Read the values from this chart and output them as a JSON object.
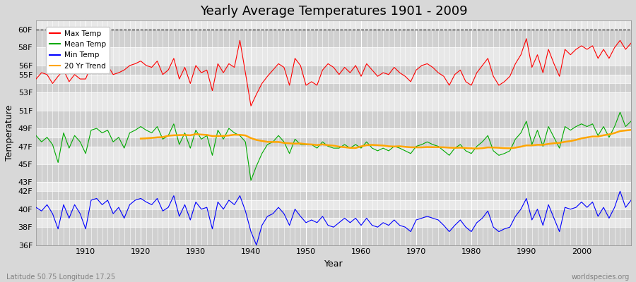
{
  "title": "Yearly Average Temperatures 1901 - 2009",
  "xlabel": "Year",
  "ylabel": "Temperature",
  "bottom_left": "Latitude 50.75 Longitude 17.25",
  "bottom_right": "worldspecies.org",
  "years": [
    1901,
    1902,
    1903,
    1904,
    1905,
    1906,
    1907,
    1908,
    1909,
    1910,
    1911,
    1912,
    1913,
    1914,
    1915,
    1916,
    1917,
    1918,
    1919,
    1920,
    1921,
    1922,
    1923,
    1924,
    1925,
    1926,
    1927,
    1928,
    1929,
    1930,
    1931,
    1932,
    1933,
    1934,
    1935,
    1936,
    1937,
    1938,
    1939,
    1940,
    1941,
    1942,
    1943,
    1944,
    1945,
    1946,
    1947,
    1948,
    1949,
    1950,
    1951,
    1952,
    1953,
    1954,
    1955,
    1956,
    1957,
    1958,
    1959,
    1960,
    1961,
    1962,
    1963,
    1964,
    1965,
    1966,
    1967,
    1968,
    1969,
    1970,
    1971,
    1972,
    1973,
    1974,
    1975,
    1976,
    1977,
    1978,
    1979,
    1980,
    1981,
    1982,
    1983,
    1984,
    1985,
    1986,
    1987,
    1988,
    1989,
    1990,
    1991,
    1992,
    1993,
    1994,
    1995,
    1996,
    1997,
    1998,
    1999,
    2000,
    2001,
    2002,
    2003,
    2004,
    2005,
    2006,
    2007,
    2008,
    2009
  ],
  "max_temp": [
    54.5,
    55.2,
    55.0,
    54.0,
    54.8,
    55.5,
    54.2,
    55.0,
    54.5,
    54.5,
    56.0,
    55.5,
    55.5,
    56.0,
    55.0,
    55.2,
    55.5,
    56.0,
    56.2,
    56.5,
    56.0,
    55.8,
    56.5,
    55.0,
    55.5,
    56.8,
    54.5,
    55.8,
    54.0,
    56.0,
    55.2,
    55.5,
    53.2,
    56.2,
    55.2,
    56.2,
    55.8,
    58.8,
    55.2,
    51.5,
    52.8,
    54.0,
    54.8,
    55.5,
    56.2,
    55.8,
    53.8,
    56.8,
    56.0,
    53.8,
    54.2,
    53.8,
    55.5,
    56.2,
    55.8,
    55.0,
    55.8,
    55.2,
    56.0,
    54.8,
    56.2,
    55.5,
    54.8,
    55.2,
    55.0,
    55.8,
    55.2,
    54.8,
    54.2,
    55.5,
    56.0,
    56.2,
    55.8,
    55.2,
    54.8,
    53.8,
    55.0,
    55.5,
    54.2,
    53.8,
    55.2,
    56.0,
    56.8,
    54.8,
    53.8,
    54.2,
    54.8,
    56.2,
    57.2,
    59.0,
    55.8,
    57.2,
    55.2,
    57.8,
    56.2,
    54.8,
    57.8,
    57.2,
    57.8,
    58.2,
    57.8,
    58.2,
    56.8,
    57.8,
    56.8,
    58.0,
    58.8,
    57.8,
    58.5
  ],
  "mean_temp": [
    48.2,
    47.5,
    48.0,
    47.2,
    45.2,
    48.5,
    46.8,
    48.2,
    47.5,
    46.2,
    48.8,
    49.0,
    48.5,
    48.8,
    47.5,
    48.0,
    46.8,
    48.5,
    48.8,
    49.2,
    48.8,
    48.5,
    49.2,
    47.8,
    48.2,
    49.5,
    47.2,
    48.5,
    46.8,
    48.8,
    47.8,
    48.2,
    46.0,
    48.8,
    47.8,
    49.0,
    48.5,
    48.2,
    47.5,
    43.2,
    44.8,
    46.2,
    47.2,
    47.5,
    48.2,
    47.5,
    46.2,
    47.8,
    47.2,
    47.2,
    47.2,
    46.8,
    47.5,
    47.0,
    46.8,
    46.8,
    47.2,
    46.8,
    47.2,
    46.8,
    47.5,
    46.8,
    46.5,
    46.8,
    46.5,
    47.0,
    46.8,
    46.5,
    46.2,
    47.0,
    47.2,
    47.5,
    47.2,
    47.0,
    46.5,
    46.0,
    46.8,
    47.2,
    46.5,
    46.2,
    47.0,
    47.5,
    48.2,
    46.5,
    46.0,
    46.2,
    46.5,
    47.8,
    48.5,
    49.8,
    47.2,
    48.8,
    47.0,
    49.2,
    48.0,
    46.8,
    49.2,
    48.8,
    49.2,
    49.5,
    49.2,
    49.5,
    48.2,
    49.2,
    48.0,
    49.2,
    50.8,
    49.2,
    49.8
  ],
  "min_temp": [
    40.2,
    39.8,
    40.5,
    39.5,
    37.8,
    40.5,
    39.0,
    40.5,
    39.5,
    37.8,
    41.0,
    41.2,
    40.5,
    41.0,
    39.5,
    40.2,
    39.0,
    40.5,
    41.0,
    41.2,
    40.8,
    40.5,
    41.2,
    39.8,
    40.2,
    41.5,
    39.2,
    40.5,
    38.8,
    40.8,
    40.0,
    40.2,
    37.8,
    40.8,
    40.0,
    41.0,
    40.5,
    41.5,
    39.8,
    37.5,
    36.0,
    38.2,
    39.2,
    39.5,
    40.2,
    39.5,
    38.2,
    40.0,
    39.2,
    38.5,
    38.8,
    38.5,
    39.2,
    38.2,
    38.0,
    38.5,
    39.0,
    38.5,
    39.0,
    38.2,
    39.0,
    38.2,
    38.0,
    38.5,
    38.2,
    38.8,
    38.2,
    38.0,
    37.5,
    38.8,
    39.0,
    39.2,
    39.0,
    38.8,
    38.2,
    37.5,
    38.2,
    38.8,
    38.0,
    37.5,
    38.5,
    39.0,
    39.8,
    38.0,
    37.5,
    37.8,
    38.0,
    39.2,
    40.0,
    41.2,
    38.8,
    40.0,
    38.2,
    40.5,
    39.0,
    37.5,
    40.2,
    40.0,
    40.2,
    40.8,
    40.2,
    40.8,
    39.2,
    40.2,
    39.0,
    40.2,
    42.0,
    40.2,
    41.0
  ],
  "bg_color": "#d8d8d8",
  "plot_bg_color": "#e0e0e0",
  "stripe_color1": "#d0d0d0",
  "stripe_color2": "#e8e8e8",
  "grid_color": "#ffffff",
  "max_color": "#ff0000",
  "mean_color": "#00aa00",
  "min_color": "#0000ff",
  "trend_color": "#ffa500",
  "ylim_min": 36,
  "ylim_max": 61,
  "yticks": [
    36,
    38,
    39,
    40,
    41,
    42,
    43,
    45,
    47,
    48,
    49,
    51,
    53,
    54,
    55,
    56,
    58,
    60
  ],
  "ytick_labels": [
    "36F",
    "38F",
    "",
    "40F",
    "",
    "42F",
    "43F",
    "45F",
    "47F",
    "",
    "49F",
    "51F",
    "53F",
    "",
    "55F",
    "56F",
    "58F",
    "60F"
  ],
  "xticks": [
    1910,
    1920,
    1930,
    1940,
    1950,
    1960,
    1970,
    1980,
    1990,
    2000
  ],
  "title_fontsize": 13,
  "axis_fontsize": 8,
  "label_fontsize": 9,
  "legend_fontsize": 7.5
}
